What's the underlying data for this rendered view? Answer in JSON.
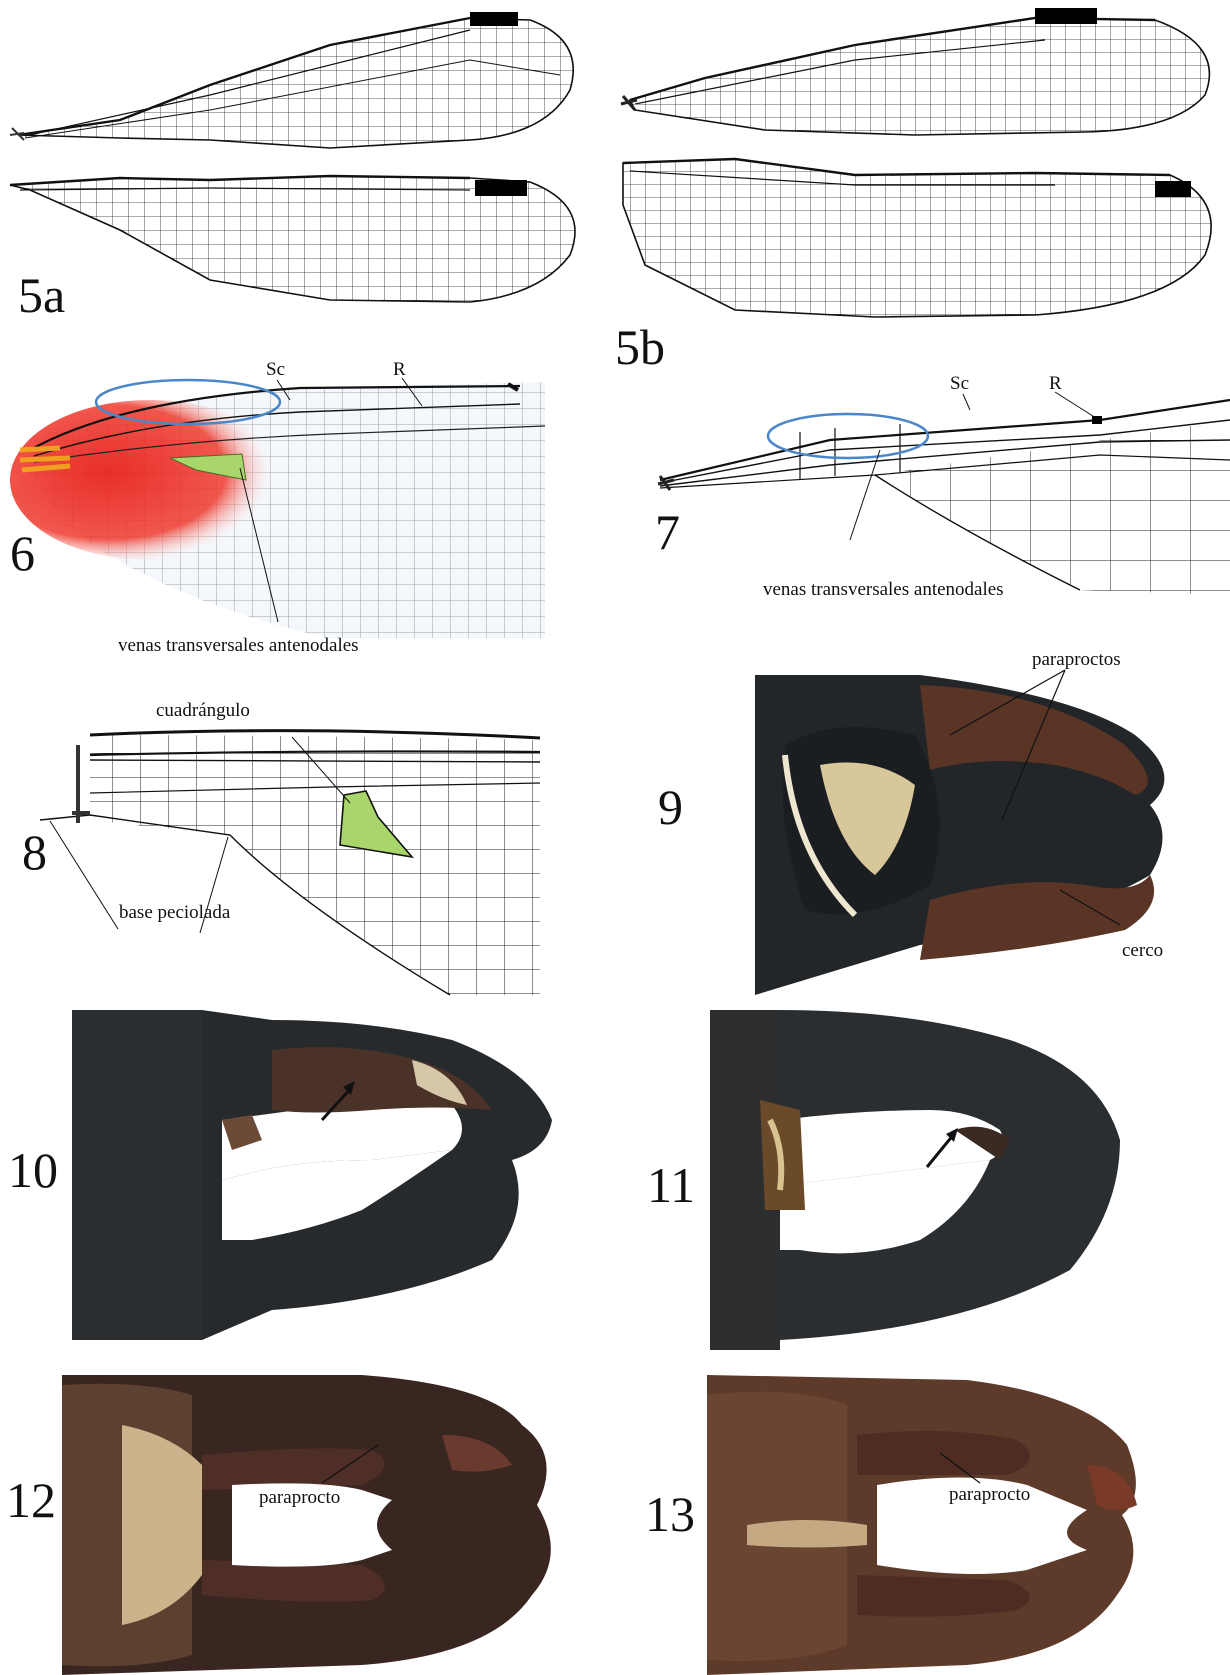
{
  "figure_labels": {
    "f5a": "5a",
    "f5b": "5b",
    "f6": "6",
    "f7": "7",
    "f8": "8",
    "f9": "9",
    "f10": "10",
    "f11": "11",
    "f12": "12",
    "f13": "13"
  },
  "annotations": {
    "sc_6": "Sc",
    "r_6": "R",
    "antenodales_6": "venas transversales antenodales",
    "sc_7": "Sc",
    "r_7": "R",
    "antenodales_7": "venas transversales antenodales",
    "cuadrangulo": "cuadrángulo",
    "base_peciolada": "base peciolada",
    "paraproctos": "paraproctos",
    "cerco": "cerco",
    "paraprocto_12": "paraprocto",
    "paraprocto_13": "paraprocto"
  },
  "colors": {
    "vein": "#111111",
    "pterostigma": "#000000",
    "highlight_ellipse": "#4a86c8",
    "quadrangle_fill": "#a9d66a",
    "wing_base_red": "#e8231e",
    "cuticle_dark": "#1f2326",
    "cuticle_brown": "#5a3526"
  },
  "icons": {
    "arrow": "arrow-icon"
  }
}
